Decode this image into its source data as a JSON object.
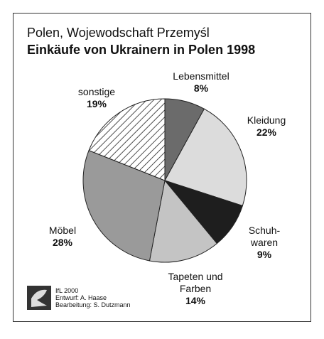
{
  "chart_data": {
    "type": "pie",
    "title": "Polen, Wojewodschaft Przemyśl",
    "subtitle": "Einkäufe von Ukrainern in Polen 1998",
    "categories": [
      "Lebensmittel",
      "Kleidung",
      "Schuh-\nwaren",
      "Tapeten und\nFarben",
      "Möbel",
      "sonstige"
    ],
    "values": [
      8,
      22,
      9,
      14,
      28,
      19
    ],
    "value_labels": [
      "8%",
      "22%",
      "9%",
      "14%",
      "28%",
      "19%"
    ],
    "colors": [
      "#6b6b6b",
      "#dcdcdc",
      "#1e1e1e",
      "#c4c4c4",
      "#9a9a9a",
      "hatch"
    ],
    "credits": [
      "IfL 2000",
      "Entwurf: A. Haase",
      "Bearbeitung: S. Dutzmann"
    ]
  }
}
